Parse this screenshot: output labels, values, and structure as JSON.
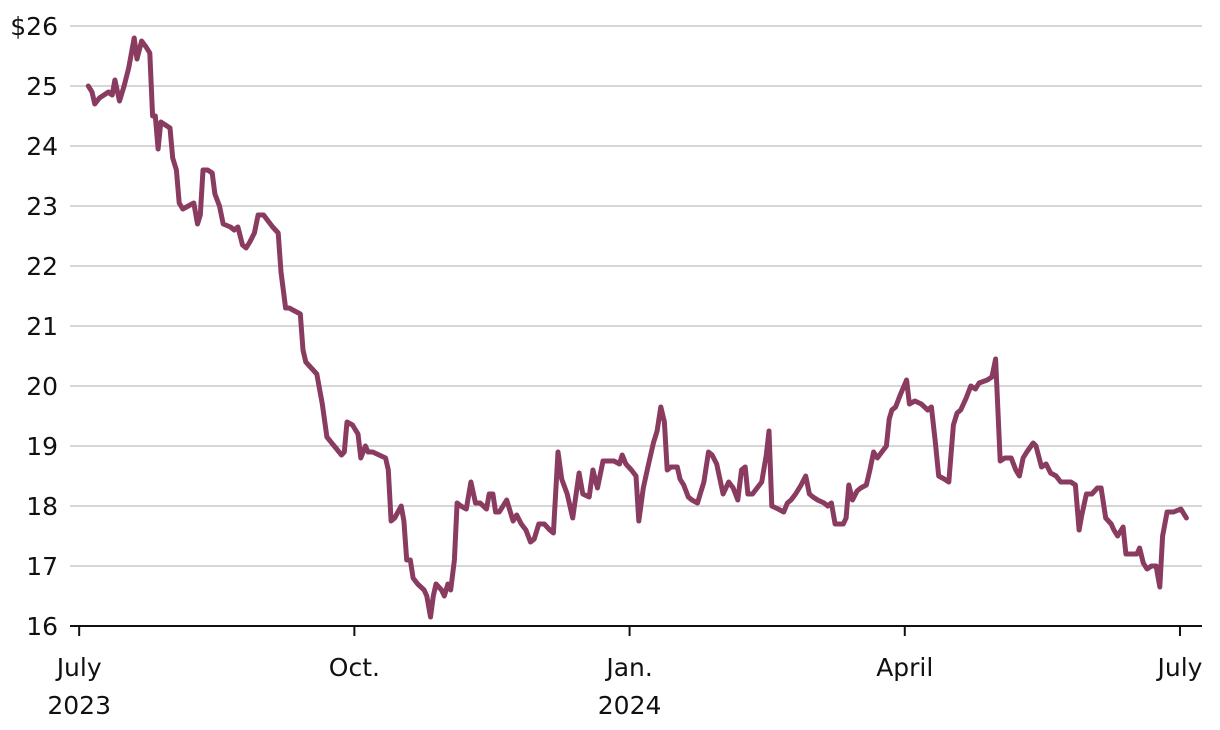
{
  "chart_data": {
    "type": "line",
    "color": "#8a3b60",
    "grid": true,
    "xlim": [
      -0.1,
      12.24
    ],
    "xticks": [
      {
        "value": 0,
        "label": "July 2023"
      },
      {
        "value": 3,
        "label": "Oct."
      },
      {
        "value": 6,
        "label": "Jan. 2024"
      },
      {
        "value": 9,
        "label": "April"
      },
      {
        "value": 12,
        "label": "July"
      }
    ],
    "ylim": [
      16,
      26
    ],
    "yticks": [
      16,
      17,
      18,
      19,
      20,
      21,
      22,
      23,
      24,
      25,
      {
        "value": 26,
        "label": "$26"
      }
    ],
    "x": [
      0.1,
      0.14,
      0.17,
      0.22,
      0.32,
      0.36,
      0.39,
      0.44,
      0.49,
      0.54,
      0.6,
      0.63,
      0.68,
      0.73,
      0.77,
      0.8,
      0.83,
      0.86,
      0.89,
      0.94,
      0.99,
      1.02,
      1.06,
      1.09,
      1.13,
      1.19,
      1.25,
      1.29,
      1.32,
      1.35,
      1.4,
      1.45,
      1.48,
      1.53,
      1.57,
      1.65,
      1.69,
      1.73,
      1.78,
      1.82,
      1.86,
      1.91,
      1.95,
      2.01,
      2.06,
      2.11,
      2.17,
      2.2,
      2.25,
      2.29,
      2.35,
      2.41,
      2.44,
      2.47,
      2.53,
      2.59,
      2.65,
      2.7,
      2.78,
      2.86,
      2.89,
      2.92,
      2.98,
      3.04,
      3.07,
      3.12,
      3.15,
      3.2,
      3.27,
      3.34,
      3.37,
      3.4,
      3.44,
      3.51,
      3.54,
      3.57,
      3.61,
      3.64,
      3.69,
      3.76,
      3.79,
      3.83,
      3.86,
      3.89,
      3.95,
      3.98,
      4.02,
      4.05,
      4.09,
      4.12,
      4.16,
      4.22,
      4.27,
      4.32,
      4.37,
      4.44,
      4.47,
      4.51,
      4.54,
      4.58,
      4.62,
      4.66,
      4.73,
      4.77,
      4.82,
      4.87,
      4.92,
      4.96,
      5.01,
      5.07,
      5.13,
      5.17,
      5.22,
      5.26,
      5.32,
      5.38,
      5.45,
      5.49,
      5.56,
      5.6,
      5.65,
      5.71,
      5.77,
      5.83,
      5.89,
      5.92,
      5.96,
      6.02,
      6.07,
      6.1,
      6.15,
      6.2,
      6.26,
      6.3,
      6.34,
      6.38,
      6.41,
      6.45,
      6.52,
      6.55,
      6.59,
      6.64,
      6.68,
      6.74,
      6.77,
      6.81,
      6.86,
      6.9,
      6.95,
      7.02,
      7.08,
      7.13,
      7.18,
      7.22,
      7.26,
      7.29,
      7.34,
      7.39,
      7.44,
      7.49,
      7.52,
      7.55,
      7.62,
      7.68,
      7.72,
      7.76,
      7.81,
      7.87,
      7.92,
      7.96,
      8.0,
      8.05,
      8.12,
      8.16,
      8.2,
      8.24,
      8.33,
      8.36,
      8.39,
      8.43,
      8.48,
      8.52,
      8.58,
      8.62,
      8.66,
      8.7,
      8.75,
      8.8,
      8.83,
      8.86,
      8.9,
      8.95,
      9.02,
      9.05,
      9.11,
      9.18,
      9.25,
      9.29,
      9.33,
      9.37,
      9.43,
      9.48,
      9.53,
      9.57,
      9.61,
      9.67,
      9.72,
      9.77,
      9.81,
      9.9,
      9.95,
      9.99,
      10.04,
      10.09,
      10.16,
      10.21,
      10.25,
      10.29,
      10.33,
      10.4,
      10.43,
      10.49,
      10.54,
      10.59,
      10.65,
      10.7,
      10.76,
      10.81,
      10.86,
      10.9,
      10.93,
      10.98,
      11.04,
      11.1,
      11.14,
      11.19,
      11.25,
      11.28,
      11.32,
      11.38,
      11.41,
      11.48,
      11.53,
      11.56,
      11.6,
      11.64,
      11.69,
      11.74,
      11.78,
      11.81,
      11.86,
      11.93,
      12.01,
      12.07
    ],
    "values": [
      25.0,
      24.9,
      24.7,
      24.8,
      24.9,
      24.85,
      25.1,
      24.75,
      25.0,
      25.3,
      25.8,
      25.45,
      25.75,
      25.65,
      25.55,
      24.5,
      24.5,
      23.95,
      24.4,
      24.35,
      24.3,
      23.8,
      23.6,
      23.05,
      22.95,
      23.0,
      23.05,
      22.7,
      22.85,
      23.6,
      23.6,
      23.55,
      23.2,
      23.0,
      22.7,
      22.65,
      22.6,
      22.65,
      22.35,
      22.3,
      22.4,
      22.55,
      22.85,
      22.85,
      22.75,
      22.65,
      22.55,
      21.9,
      21.3,
      21.3,
      21.25,
      21.2,
      20.6,
      20.4,
      20.3,
      20.2,
      19.7,
      19.15,
      19.0,
      18.85,
      18.9,
      19.4,
      19.35,
      19.2,
      18.8,
      19.0,
      18.9,
      18.9,
      18.85,
      18.8,
      18.6,
      17.75,
      17.8,
      18.0,
      17.75,
      17.1,
      17.1,
      16.8,
      16.7,
      16.6,
      16.5,
      16.15,
      16.5,
      16.7,
      16.6,
      16.5,
      16.7,
      16.6,
      17.1,
      18.05,
      18.0,
      17.95,
      18.4,
      18.05,
      18.05,
      17.95,
      18.2,
      18.2,
      17.9,
      17.9,
      18.0,
      18.1,
      17.75,
      17.85,
      17.7,
      17.6,
      17.4,
      17.45,
      17.7,
      17.7,
      17.6,
      17.55,
      18.9,
      18.45,
      18.2,
      17.8,
      18.55,
      18.2,
      18.15,
      18.6,
      18.3,
      18.75,
      18.75,
      18.75,
      18.7,
      18.85,
      18.7,
      18.6,
      18.5,
      17.75,
      18.3,
      18.65,
      19.05,
      19.25,
      19.65,
      19.4,
      18.6,
      18.65,
      18.65,
      18.45,
      18.35,
      18.15,
      18.1,
      18.05,
      18.2,
      18.4,
      18.9,
      18.85,
      18.7,
      18.2,
      18.4,
      18.3,
      18.1,
      18.6,
      18.65,
      18.2,
      18.2,
      18.3,
      18.4,
      18.85,
      19.25,
      18.0,
      17.95,
      17.9,
      18.05,
      18.1,
      18.2,
      18.35,
      18.5,
      18.2,
      18.15,
      18.1,
      18.05,
      18.0,
      18.05,
      17.7,
      17.7,
      17.8,
      18.35,
      18.1,
      18.25,
      18.3,
      18.35,
      18.6,
      18.9,
      18.8,
      18.9,
      19.0,
      19.45,
      19.6,
      19.65,
      19.85,
      20.1,
      19.7,
      19.75,
      19.7,
      19.6,
      19.65,
      19.1,
      18.5,
      18.45,
      18.4,
      19.35,
      19.55,
      19.6,
      19.8,
      20.0,
      19.95,
      20.05,
      20.1,
      20.15,
      20.45,
      18.75,
      18.8,
      18.8,
      18.6,
      18.5,
      18.8,
      18.9,
      19.05,
      19.0,
      18.65,
      18.7,
      18.55,
      18.5,
      18.4,
      18.4,
      18.4,
      18.35,
      17.6,
      17.85,
      18.2,
      18.2,
      18.3,
      18.3,
      17.8,
      17.7,
      17.6,
      17.5,
      17.65,
      17.2,
      17.2,
      17.2,
      17.3,
      17.05,
      16.95,
      17.0,
      17.0,
      16.65,
      17.5,
      17.9,
      17.9,
      17.95,
      17.8
    ]
  }
}
